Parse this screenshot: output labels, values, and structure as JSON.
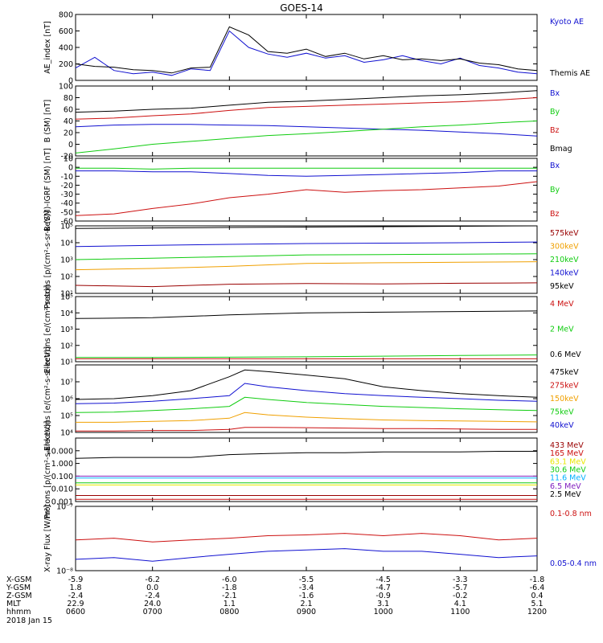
{
  "title": "GOES-14",
  "colors": {
    "black": "#000000",
    "blue": "#1010d0",
    "red": "#cc1010",
    "green": "#10cc10",
    "orange": "#f0a000",
    "yellow": "#e8e800",
    "cyan": "#00b0ff",
    "purple": "#8020c0",
    "darkred": "#990000"
  },
  "chart_data": [
    {
      "type": "line",
      "ylabel": "AE_index [nT]",
      "ylim": [
        0,
        800
      ],
      "yscale": "linear",
      "yticks": [
        0,
        200,
        400,
        600,
        800
      ],
      "ytick_labels": [
        "0",
        "200",
        "400",
        "600",
        "800"
      ],
      "x": [
        0,
        0.25,
        0.5,
        0.75,
        1.0,
        1.25,
        1.5,
        1.75,
        2.0,
        2.25,
        2.5,
        2.75,
        3.0,
        3.25,
        3.5,
        3.75,
        4.0,
        4.25,
        4.5,
        4.75,
        5.0,
        5.25,
        5.5,
        5.75,
        6.0
      ],
      "series": [
        {
          "name": "Kyoto AE",
          "color": "blue",
          "values": [
            150,
            280,
            120,
            80,
            100,
            60,
            140,
            120,
            600,
            400,
            320,
            280,
            330,
            270,
            300,
            220,
            250,
            300,
            240,
            200,
            270,
            180,
            150,
            100,
            80
          ]
        },
        {
          "name": "Themis AE",
          "color": "black",
          "values": [
            200,
            170,
            160,
            130,
            120,
            90,
            150,
            160,
            650,
            550,
            350,
            330,
            380,
            290,
            330,
            260,
            300,
            250,
            260,
            240,
            260,
            210,
            190,
            140,
            120
          ]
        }
      ]
    },
    {
      "type": "line",
      "ylabel": "B (SM) [nT]",
      "ylim": [
        -20,
        100
      ],
      "yscale": "linear",
      "yticks": [
        -20,
        0,
        20,
        40,
        60,
        80,
        100
      ],
      "ytick_labels": [
        "-20",
        "0",
        "20",
        "40",
        "60",
        "80",
        "100"
      ],
      "x": [
        0,
        0.5,
        1.0,
        1.5,
        2.0,
        2.5,
        3.0,
        3.5,
        4.0,
        4.5,
        5.0,
        5.5,
        6.0
      ],
      "series": [
        {
          "name": "Bx",
          "color": "blue",
          "values": [
            30,
            33,
            34,
            34,
            33,
            32,
            30,
            28,
            26,
            24,
            21,
            18,
            14
          ]
        },
        {
          "name": "By",
          "color": "green",
          "values": [
            -15,
            -8,
            0,
            5,
            10,
            15,
            18,
            22,
            26,
            30,
            33,
            37,
            40
          ]
        },
        {
          "name": "Bz",
          "color": "red",
          "values": [
            43,
            45,
            49,
            52,
            58,
            63,
            65,
            67,
            69,
            71,
            73,
            76,
            80
          ]
        },
        {
          "name": "Bmag",
          "color": "black",
          "values": [
            55,
            57,
            60,
            62,
            67,
            72,
            74,
            77,
            80,
            83,
            85,
            88,
            92
          ]
        }
      ]
    },
    {
      "type": "line",
      "ylabel": "B (SM)-IGRF (SM) [nT]",
      "ylim": [
        -60,
        10
      ],
      "yscale": "linear",
      "yticks": [
        -60,
        -50,
        -40,
        -30,
        -20,
        -10,
        0,
        10
      ],
      "ytick_labels": [
        "-60",
        "-50",
        "-40",
        "-30",
        "-20",
        "-10",
        "0",
        "10"
      ],
      "x": [
        0,
        0.5,
        1.0,
        1.5,
        2.0,
        2.5,
        3.0,
        3.5,
        4.0,
        4.5,
        5.0,
        5.5,
        6.0
      ],
      "series": [
        {
          "name": "Bx",
          "color": "blue",
          "values": [
            -4,
            -4,
            -5,
            -5,
            -7,
            -9,
            -10,
            -9,
            -8,
            -7,
            -6,
            -4,
            -4
          ]
        },
        {
          "name": "By",
          "color": "green",
          "values": [
            -1,
            -1,
            -2,
            -1,
            -1,
            -1,
            -1,
            -1,
            -1,
            -1,
            -1,
            -1,
            -1
          ]
        },
        {
          "name": "Bz",
          "color": "red",
          "values": [
            -54,
            -52,
            -46,
            -41,
            -34,
            -30,
            -25,
            -28,
            -26,
            -25,
            -23,
            -21,
            -16
          ]
        }
      ]
    },
    {
      "type": "line",
      "ylabel": "Protons [p/(cm²-s-sr-keV)]",
      "ylim": [
        10,
        100000
      ],
      "yscale": "log",
      "yticks": [
        10,
        100,
        1000,
        10000,
        100000
      ],
      "ytick_labels": [
        "10¹",
        "10²",
        "10³",
        "10⁴",
        "10⁵"
      ],
      "x": [
        0,
        1.0,
        2.0,
        3.0,
        4.0,
        5.0,
        6.0
      ],
      "series": [
        {
          "name": "575keV",
          "color": "darkred",
          "values": [
            30,
            25,
            35,
            38,
            36,
            40,
            42
          ]
        },
        {
          "name": "300keV",
          "color": "orange",
          "values": [
            250,
            300,
            400,
            600,
            650,
            700,
            750
          ]
        },
        {
          "name": "210keV",
          "color": "green",
          "values": [
            1000,
            1200,
            1500,
            1900,
            2000,
            2100,
            2200
          ]
        },
        {
          "name": "140keV",
          "color": "blue",
          "values": [
            6000,
            7000,
            8000,
            9000,
            9500,
            10000,
            11000
          ]
        },
        {
          "name": "95keV",
          "color": "black",
          "values": [
            70000,
            75000,
            80000,
            85000,
            90000,
            95000,
            100000
          ]
        }
      ]
    },
    {
      "type": "line",
      "ylabel": "Electrons [e/(cm²-s-sr)]",
      "ylim": [
        10,
        100000
      ],
      "yscale": "log",
      "yticks": [
        10,
        100,
        1000,
        10000,
        100000
      ],
      "ytick_labels": [
        "10¹",
        "10²",
        "10³",
        "10⁴",
        "10⁵"
      ],
      "x": [
        0,
        1.0,
        2.0,
        3.0,
        4.0,
        5.0,
        6.0
      ],
      "series": [
        {
          "name": "4 MeV",
          "color": "red",
          "values": [
            15,
            15,
            15,
            15,
            15,
            15,
            15
          ]
        },
        {
          "name": "2 MeV",
          "color": "green",
          "values": [
            18,
            18,
            19,
            20,
            22,
            24,
            26
          ]
        },
        {
          "name": "0.6 MeV",
          "color": "black",
          "values": [
            4500,
            5000,
            7500,
            10000,
            11000,
            12000,
            13000
          ]
        }
      ]
    },
    {
      "type": "line",
      "ylabel": "Electrons [e/(cm²-s-sr-keV)]",
      "ylim": [
        10000,
        100000000
      ],
      "yscale": "log",
      "yticks": [
        10000,
        100000,
        1000000,
        10000000
      ],
      "ytick_labels": [
        "10⁴",
        "10⁵",
        "10⁶",
        "10⁷"
      ],
      "x": [
        0,
        0.5,
        1.0,
        1.5,
        2.0,
        2.2,
        2.5,
        3.0,
        3.5,
        4.0,
        4.5,
        5.0,
        5.5,
        6.0
      ],
      "series": [
        {
          "name": "475keV",
          "color": "black",
          "values": [
            900000,
            1000000,
            1500000,
            3000000,
            20000000,
            50000000,
            40000000,
            25000000,
            15000000,
            5000000,
            3000000,
            2000000,
            1500000,
            1200000
          ]
        },
        {
          "name": "275keV",
          "color": "red",
          "values": [
            12000,
            12000,
            13000,
            13000,
            15000,
            20000,
            20000,
            19000,
            18000,
            17000,
            17000,
            16000,
            15000,
            15000
          ]
        },
        {
          "name": "150keV",
          "color": "orange",
          "values": [
            40000,
            40000,
            45000,
            50000,
            70000,
            150000,
            110000,
            80000,
            65000,
            55000,
            50000,
            48000,
            45000,
            42000
          ]
        },
        {
          "name": "75keV",
          "color": "green",
          "values": [
            150000,
            160000,
            200000,
            250000,
            350000,
            1200000,
            900000,
            600000,
            450000,
            350000,
            300000,
            250000,
            220000,
            200000
          ]
        },
        {
          "name": "40keV",
          "color": "blue",
          "values": [
            500000,
            550000,
            700000,
            1000000,
            1500000,
            8000000,
            5000000,
            3000000,
            2000000,
            1500000,
            1200000,
            1000000,
            800000,
            700000
          ]
        }
      ]
    },
    {
      "type": "line",
      "ylabel": "Protons [p/(cm²-s-sr-keV)]",
      "ylim": [
        0.001,
        100
      ],
      "yscale": "log",
      "yticks": [
        0.001,
        0.01,
        0.1,
        1,
        10
      ],
      "ytick_labels": [
        "0.001",
        "0.010",
        "0.100",
        "1.000",
        "10.000"
      ],
      "x": [
        0,
        0.5,
        1.0,
        1.5,
        2.0,
        2.5,
        3.0,
        3.5,
        4.0,
        4.5,
        5.0,
        5.5,
        6.0
      ],
      "series": [
        {
          "name": "433 MeV",
          "color": "darkred",
          "values": [
            0.003,
            0.003,
            0.003,
            0.003,
            0.003,
            0.003,
            0.003,
            0.003,
            0.003,
            0.003,
            0.003,
            0.003,
            0.003
          ]
        },
        {
          "name": "165 MeV",
          "color": "red",
          "values": [
            0.0015,
            0.0015,
            0.0015,
            0.0015,
            0.0015,
            0.0015,
            0.0015,
            0.0015,
            0.0015,
            0.0015,
            0.0015,
            0.0015,
            0.0015
          ]
        },
        {
          "name": "63.1 MeV",
          "color": "yellow",
          "values": [
            0.02,
            0.02,
            0.02,
            0.02,
            0.02,
            0.02,
            0.02,
            0.02,
            0.02,
            0.02,
            0.02,
            0.02,
            0.02
          ]
        },
        {
          "name": "30.6 MeV",
          "color": "green",
          "values": [
            0.03,
            0.03,
            0.03,
            0.03,
            0.03,
            0.03,
            0.03,
            0.03,
            0.03,
            0.03,
            0.03,
            0.03,
            0.03
          ]
        },
        {
          "name": "11.6 MeV",
          "color": "cyan",
          "values": [
            0.07,
            0.07,
            0.07,
            0.07,
            0.07,
            0.07,
            0.07,
            0.07,
            0.07,
            0.07,
            0.07,
            0.07,
            0.07
          ]
        },
        {
          "name": "6.5 MeV",
          "color": "purple",
          "values": [
            0.1,
            0.1,
            0.1,
            0.1,
            0.1,
            0.1,
            0.1,
            0.1,
            0.1,
            0.1,
            0.1,
            0.1,
            0.1
          ]
        },
        {
          "name": "2.5 MeV",
          "color": "black",
          "values": [
            2.5,
            3,
            3,
            3,
            5,
            6,
            7,
            7,
            8,
            8,
            8,
            9,
            9
          ]
        }
      ]
    },
    {
      "type": "line",
      "ylabel": "X-ray Flux [W/m²]",
      "ylim": [
        1e-08,
        1e-07
      ],
      "yscale": "log",
      "yticks": [
        1e-08,
        1e-07
      ],
      "ytick_labels": [
        "10⁻⁸",
        "10⁻⁷"
      ],
      "x": [
        0,
        0.5,
        1.0,
        1.5,
        2.0,
        2.5,
        3.0,
        3.5,
        4.0,
        4.5,
        5.0,
        5.5,
        6.0
      ],
      "series": [
        {
          "name": "0.1-0.8 nm",
          "color": "red",
          "values": [
            3e-08,
            3.2e-08,
            2.8e-08,
            3e-08,
            3.2e-08,
            3.5e-08,
            3.6e-08,
            3.8e-08,
            3.5e-08,
            3.8e-08,
            3.5e-08,
            3e-08,
            3.2e-08
          ]
        },
        {
          "name": "0.05-0.4 nm",
          "color": "blue",
          "values": [
            1.5e-08,
            1.6e-08,
            1.4e-08,
            1.6e-08,
            1.8e-08,
            2e-08,
            2.1e-08,
            2.2e-08,
            2e-08,
            2e-08,
            1.8e-08,
            1.6e-08,
            1.7e-08
          ]
        }
      ]
    }
  ],
  "xaxis": {
    "row_labels": [
      "X-GSM",
      "Y-GSM",
      "Z-GSM",
      "MLT",
      "hhmm",
      "2018 Jan 15"
    ],
    "columns": [
      {
        "x": 0,
        "values": [
          "-5.9",
          "1.8",
          "-2.4",
          "22.9",
          "0600"
        ]
      },
      {
        "x": 1,
        "values": [
          "-6.2",
          "0.0",
          "-2.4",
          "24.0",
          "0700"
        ]
      },
      {
        "x": 2,
        "values": [
          "-6.0",
          "-1.8",
          "-2.1",
          "1.1",
          "0800"
        ]
      },
      {
        "x": 3,
        "values": [
          "-5.5",
          "-3.4",
          "-1.6",
          "2.1",
          "0900"
        ]
      },
      {
        "x": 4,
        "values": [
          "-4.5",
          "-4.7",
          "-0.9",
          "3.1",
          "1000"
        ]
      },
      {
        "x": 5,
        "values": [
          "-3.3",
          "-5.7",
          "-0.2",
          "4.1",
          "1100"
        ]
      },
      {
        "x": 6,
        "values": [
          "-1.8",
          "-6.4",
          "0.4",
          "5.1",
          "1200"
        ]
      }
    ]
  }
}
